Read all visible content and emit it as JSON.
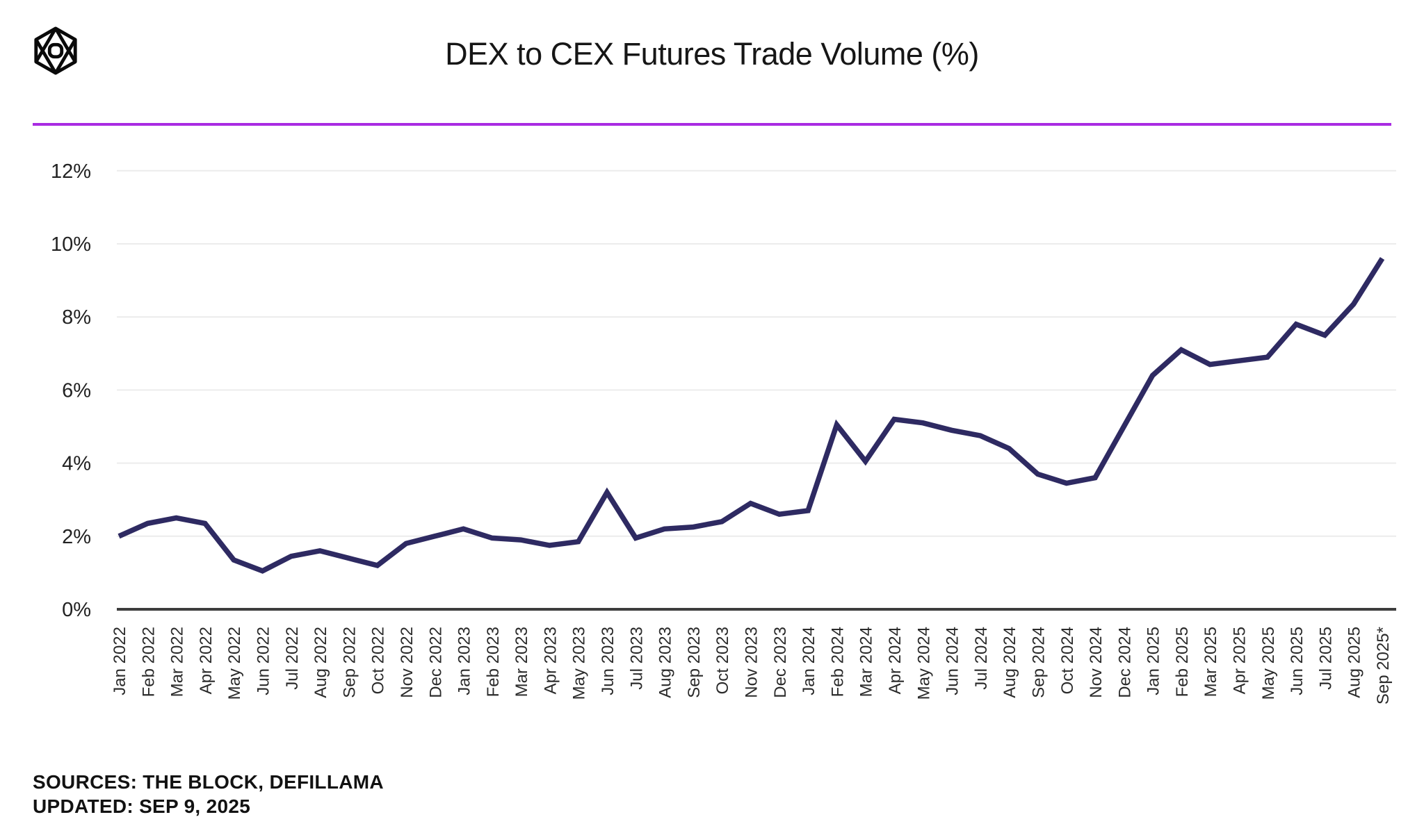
{
  "header": {
    "title": "DEX to CEX Futures Trade Volume (%)",
    "logo": "the-block-logo",
    "accent_color": "#A92BE2"
  },
  "footer": {
    "sources": "SOURCES: THE BLOCK, DEFILLAMA",
    "updated": "UPDATED: SEP 9, 2025"
  },
  "chart_data": {
    "type": "line",
    "title": "DEX to CEX Futures Trade Volume (%)",
    "legend": "none",
    "grid": "horizontal",
    "ylim": [
      0,
      12
    ],
    "yticks": [
      0,
      2,
      4,
      6,
      8,
      10,
      12
    ],
    "ytick_suffix": "%",
    "x": [
      "Jan 2022",
      "Feb 2022",
      "Mar 2022",
      "Apr 2022",
      "May 2022",
      "Jun 2022",
      "Jul 2022",
      "Aug 2022",
      "Sep 2022",
      "Oct 2022",
      "Nov 2022",
      "Dec 2022",
      "Jan 2023",
      "Feb 2023",
      "Mar 2023",
      "Apr 2023",
      "May 2023",
      "Jun 2023",
      "Jul 2023",
      "Aug 2023",
      "Sep 2023",
      "Oct 2023",
      "Nov 2023",
      "Dec 2023",
      "Jan 2024",
      "Feb 2024",
      "Mar 2024",
      "Apr 2024",
      "May 2024",
      "Jun 2024",
      "Jul 2024",
      "Aug 2024",
      "Sep 2024",
      "Oct 2024",
      "Nov 2024",
      "Dec 2024",
      "Jan 2025",
      "Feb 2025",
      "Mar 2025",
      "Apr 2025",
      "May 2025",
      "Jun 2025",
      "Jul 2025",
      "Aug 2025",
      "Sep 2025*"
    ],
    "series": [
      {
        "name": "DEX to CEX futures trade volume (%)",
        "values": [
          2.0,
          2.35,
          2.5,
          2.35,
          1.35,
          1.05,
          1.45,
          1.6,
          1.4,
          1.2,
          1.8,
          2.0,
          2.2,
          1.95,
          1.9,
          1.75,
          1.85,
          3.2,
          1.95,
          2.2,
          2.25,
          2.4,
          2.9,
          2.6,
          2.7,
          5.05,
          4.05,
          5.2,
          5.1,
          4.9,
          4.75,
          4.4,
          3.7,
          3.45,
          3.6,
          5.0,
          6.4,
          7.1,
          6.7,
          6.8,
          6.9,
          7.8,
          7.5,
          8.35,
          9.6
        ]
      }
    ],
    "colors": {
      "line": "#2E2A62",
      "gridline": "#ECECEC",
      "axis": "#3D3D3D",
      "tick_label": "#222222"
    }
  }
}
